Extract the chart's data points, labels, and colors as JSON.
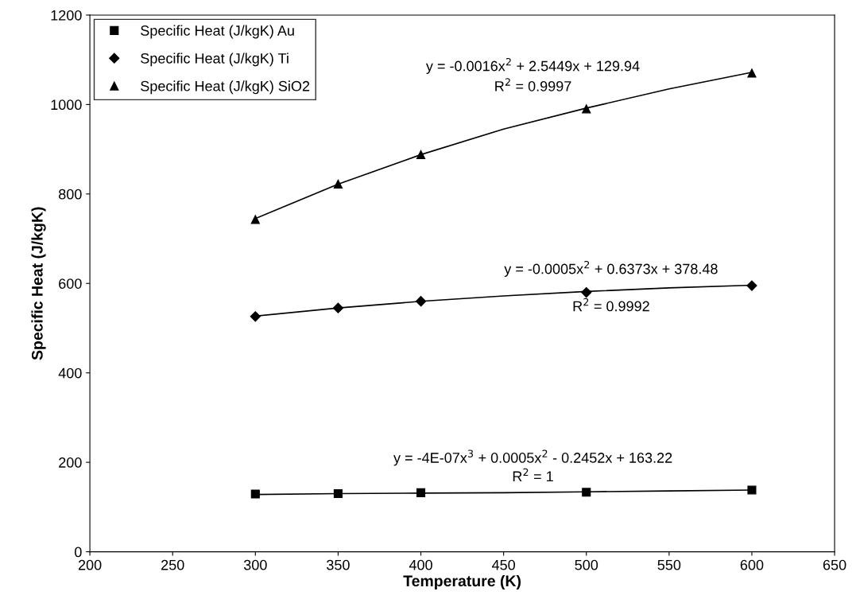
{
  "chart_data": {
    "type": "scatter",
    "xlabel": "Temperature (K)",
    "ylabel": "Specific Heat (J/kgK)",
    "xlim": [
      200,
      650
    ],
    "xticks": [
      200,
      250,
      300,
      350,
      400,
      450,
      500,
      550,
      600,
      650
    ],
    "ylim": [
      0,
      1200
    ],
    "yticks": [
      0,
      200,
      400,
      600,
      800,
      1000,
      1200
    ],
    "grid": false,
    "legend": "top left",
    "series": [
      {
        "name": "Specific Heat (J/kgK) Au",
        "marker": "square",
        "color": "#000000",
        "x": [
          300,
          350,
          400,
          500,
          600
        ],
        "values": [
          129,
          130,
          132,
          133,
          138
        ]
      },
      {
        "name": "Specific Heat (J/kgK) Ti",
        "marker": "diamond",
        "color": "#000000",
        "x": [
          300,
          350,
          400,
          500,
          600
        ],
        "values": [
          526,
          545,
          560,
          580,
          595
        ]
      },
      {
        "name": "Specific Heat (J/kgK) SiO2",
        "marker": "triangle",
        "color": "#000000",
        "x": [
          300,
          350,
          400,
          500,
          600
        ],
        "values": [
          743,
          822,
          888,
          990,
          1070
        ]
      },
      {
        "type": "line",
        "line_style": "solid",
        "color": "#000000",
        "x": [
          300,
          350,
          400,
          450,
          500,
          550,
          600
        ],
        "values": [
          128,
          130,
          131,
          132,
          134,
          136,
          138
        ]
      },
      {
        "type": "line",
        "line_style": "solid",
        "color": "#000000",
        "x": [
          300,
          350,
          400,
          450,
          500,
          550,
          600
        ],
        "values": [
          527,
          545,
          560,
          572,
          582,
          590,
          596
        ]
      },
      {
        "type": "line",
        "line_style": "solid",
        "color": "#000000",
        "x": [
          300,
          350,
          400,
          450,
          500,
          550,
          600
        ],
        "values": [
          745,
          822,
          888,
          945,
          992,
          1035,
          1072
        ]
      }
    ],
    "annotations": [
      "y = -0.0016x$^{2}$ + 2.5449x + 129.94",
      "R$^{2}$ = 0.9997",
      "y = -0.0005x$^{2}$ + 0.6373x + 378.48",
      "R$^{2}$ = 0.9992",
      "y = -4E-07x$^{3}$ + 0.0005x$^{2}$ - 0.2452x + 163.22",
      "R$^{2}$ = 1"
    ]
  }
}
